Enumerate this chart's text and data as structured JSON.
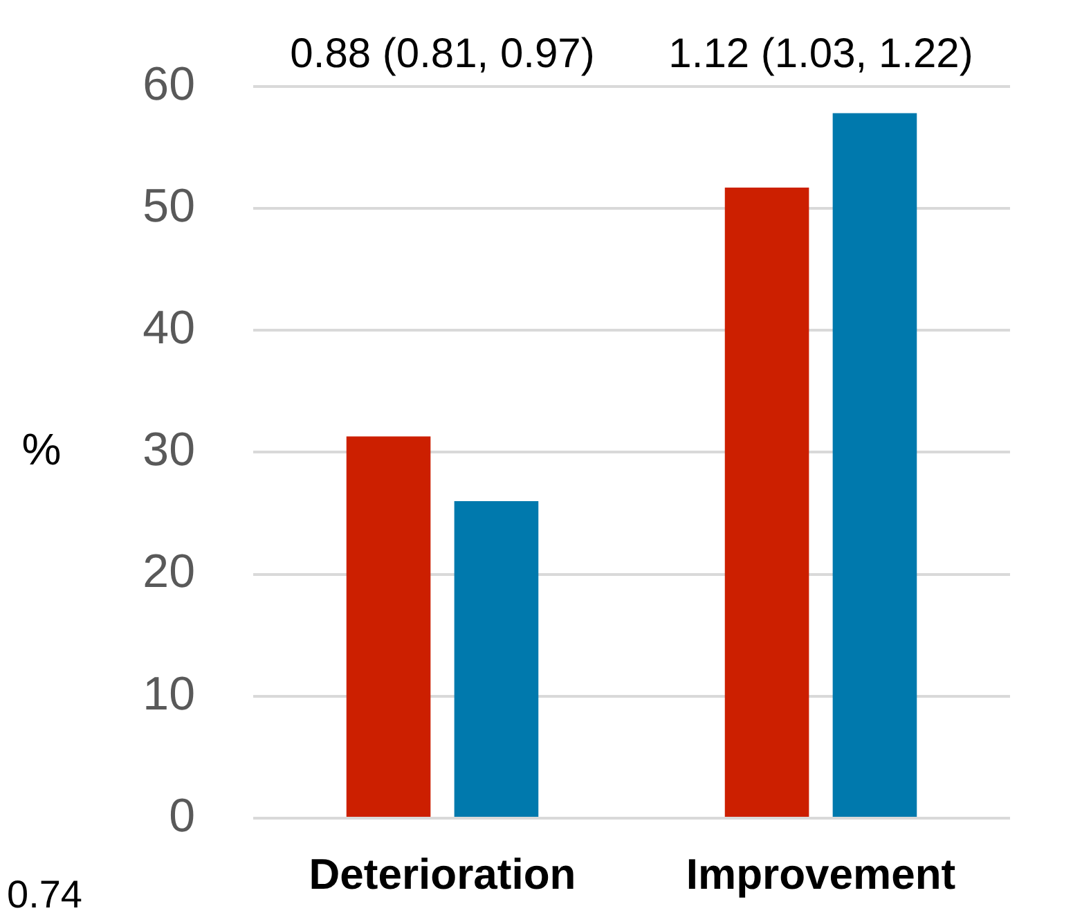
{
  "chart_data": {
    "type": "bar",
    "ylabel": "%",
    "categories": [
      "Deterioration",
      "Improvement"
    ],
    "series": [
      {
        "color": "#cc1f00",
        "values": [
          31.3,
          51.7
        ]
      },
      {
        "color": "#0079ad",
        "values": [
          26.0,
          57.8
        ]
      }
    ],
    "ylim": [
      0,
      60
    ],
    "yticks": [
      0,
      10,
      20,
      30,
      40,
      50,
      60
    ],
    "grid": "y",
    "legend": false,
    "annotations": [
      "0.88 (0.81, 0.97)",
      "1.12 (1.03, 1.22)",
      "0.74"
    ]
  }
}
